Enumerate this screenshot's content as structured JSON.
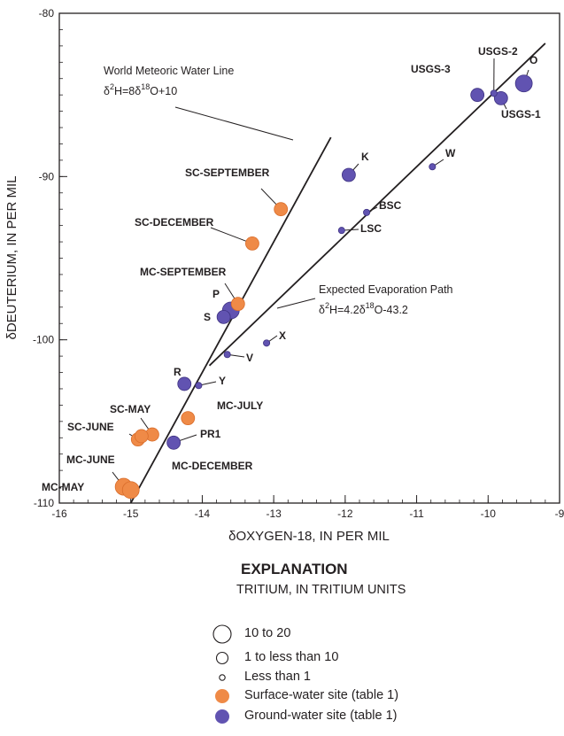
{
  "chart_data": {
    "type": "scatter",
    "xlabel": "δOXYGEN-18, IN PER MIL",
    "ylabel": "δDEUTERIUM, IN PER MIL",
    "xlim": [
      -16,
      -9
    ],
    "ylim": [
      -110,
      -80
    ],
    "x_ticks": [
      {
        "value": -16,
        "label": "-16"
      },
      {
        "value": -15,
        "label": "-15"
      },
      {
        "value": -14,
        "label": "-14"
      },
      {
        "value": -13,
        "label": "-13"
      },
      {
        "value": -12,
        "label": "-12"
      },
      {
        "value": -11,
        "label": "-11"
      },
      {
        "value": -10,
        "label": "-10"
      },
      {
        "value": -9,
        "label": "-9"
      }
    ],
    "y_ticks": [
      {
        "value": -110,
        "label": "-110"
      },
      {
        "value": -100,
        "label": "-100"
      },
      {
        "value": -90,
        "label": "-90"
      },
      {
        "value": -80,
        "label": "-80"
      }
    ],
    "grid": false,
    "lines": [
      {
        "label": "World Meteoric Water Line",
        "equation": "2H=8 18O+10",
        "slope": 8,
        "intercept": 10,
        "x_range": [
          -15,
          -12.2
        ]
      },
      {
        "label": "Expected Evaporation Path",
        "equation": "2H=4.2 18O-43.2",
        "slope": 4.2,
        "intercept": -43.2,
        "x_range": [
          -13.9,
          -9.2
        ]
      }
    ],
    "colors": {
      "surface": "#ef8a47",
      "ground": "#6153b1"
    },
    "points": [
      {
        "label": "SC-SEPTEMBER",
        "x": -12.9,
        "y": -92.0,
        "type": "surface",
        "tritium": "1 to less than 10"
      },
      {
        "label": "SC-DECEMBER",
        "x": -13.3,
        "y": -94.1,
        "type": "surface",
        "tritium": "1 to less than 10"
      },
      {
        "label": "MC-SEPTEMBER",
        "x": -13.5,
        "y": -97.8,
        "type": "surface",
        "tritium": "1 to less than 10"
      },
      {
        "label": "MC-JULY",
        "x": -14.2,
        "y": -104.8,
        "type": "surface",
        "tritium": "1 to less than 10"
      },
      {
        "label": "SC-MAY",
        "x": -14.7,
        "y": -105.8,
        "type": "surface",
        "tritium": "1 to less than 10"
      },
      {
        "label": "SC-JUNE",
        "x": -14.9,
        "y": -106.1,
        "type": "surface",
        "tritium": "1 to less than 10"
      },
      {
        "label": "MC-DECEMBER",
        "x": -14.85,
        "y": -105.9,
        "type": "surface",
        "tritium": "1 to less than 10"
      },
      {
        "label": "MC-JUNE",
        "x": -15.1,
        "y": -109.0,
        "type": "surface",
        "tritium": "10 to 20"
      },
      {
        "label": "MC-MAY",
        "x": -15.0,
        "y": -109.2,
        "type": "surface",
        "tritium": "10 to 20"
      },
      {
        "label": "O",
        "x": -9.5,
        "y": -84.3,
        "type": "ground",
        "tritium": "10 to 20"
      },
      {
        "label": "USGS-2",
        "x": -9.92,
        "y": -84.9,
        "type": "ground",
        "tritium": "Less than 1"
      },
      {
        "label": "USGS-3",
        "x": -10.15,
        "y": -85.0,
        "type": "ground",
        "tritium": "1 to less than 10"
      },
      {
        "label": "USGS-1",
        "x": -9.82,
        "y": -85.2,
        "type": "ground",
        "tritium": "1 to less than 10"
      },
      {
        "label": "W",
        "x": -10.78,
        "y": -89.4,
        "type": "ground",
        "tritium": "Less than 1"
      },
      {
        "label": "K",
        "x": -11.95,
        "y": -89.9,
        "type": "ground",
        "tritium": "1 to less than 10"
      },
      {
        "label": "BSC",
        "x": -11.7,
        "y": -92.2,
        "type": "ground",
        "tritium": "Less than 1"
      },
      {
        "label": "LSC",
        "x": -12.05,
        "y": -93.3,
        "type": "ground",
        "tritium": "Less than 1"
      },
      {
        "label": "P",
        "x": -13.6,
        "y": -98.2,
        "type": "ground",
        "tritium": "10 to 20"
      },
      {
        "label": "S",
        "x": -13.7,
        "y": -98.6,
        "type": "ground",
        "tritium": "1 to less than 10"
      },
      {
        "label": "X",
        "x": -13.1,
        "y": -100.2,
        "type": "ground",
        "tritium": "Less than 1"
      },
      {
        "label": "V",
        "x": -13.65,
        "y": -100.9,
        "type": "ground",
        "tritium": "Less than 1"
      },
      {
        "label": "R",
        "x": -14.25,
        "y": -102.7,
        "type": "ground",
        "tritium": "1 to less than 10"
      },
      {
        "label": "Y",
        "x": -14.05,
        "y": -102.8,
        "type": "ground",
        "tritium": "Less than 1"
      },
      {
        "label": "PR1",
        "x": -14.4,
        "y": -106.3,
        "type": "ground",
        "tritium": "1 to less than 10"
      }
    ]
  },
  "explanation": {
    "title": "EXPLANATION",
    "subtitle": "TRITIUM, IN TRITIUM UNITS",
    "size_items": [
      {
        "label": "10 to 20",
        "size": "large"
      },
      {
        "label": "1 to less than 10",
        "size": "medium"
      },
      {
        "label": "Less than 1",
        "size": "small"
      }
    ],
    "color_items": [
      {
        "label": "Surface-water site (table 1)",
        "type": "surface"
      },
      {
        "label": "Ground-water site (table 1)",
        "type": "ground"
      }
    ]
  }
}
